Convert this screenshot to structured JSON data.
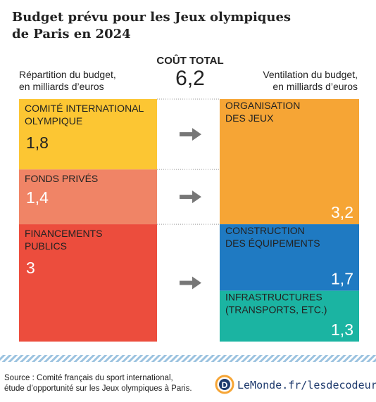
{
  "chart_data": {
    "type": "stacked-columns",
    "title": [
      "Budget prévu pour les Jeux olympiques",
      "de Paris en 2024"
    ],
    "total": {
      "name": "COÛT TOTAL",
      "value": 6.2,
      "value_label": "6,2"
    },
    "columns": [
      {
        "label": [
          "Répartition du budget,",
          "en milliards d’euros"
        ],
        "series": [
          {
            "name": [
              "COMITÉ INTERNATIONAL",
              "OLYMPIQUE"
            ],
            "color": "#fcc633",
            "value": 1.8,
            "value_label": "1,8"
          },
          {
            "name": [
              "FONDS PRIVÉS"
            ],
            "color": "#f08466",
            "value": 1.4,
            "value_label": "1,4"
          },
          {
            "name": [
              "FINANCEMENTS",
              "PUBLICS"
            ],
            "color": "#ec4d3d",
            "value": 3,
            "value_label": "3"
          }
        ]
      },
      {
        "label": [
          "Ventilation du budget,",
          "en milliards d’euros"
        ],
        "series": [
          {
            "name": [
              "ORGANISATION",
              "DES JEUX"
            ],
            "color": "#f6a535",
            "value": 3.2,
            "value_label": "3,2"
          },
          {
            "name": [
              "CONSTRUCTION",
              "DES ÉQUIPEMENTS"
            ],
            "color": "#1f7ac2",
            "value": 1.7,
            "value_label": "1,7"
          },
          {
            "name": [
              "INFRASTRUCTURES",
              "(TRANSPORTS, ETC.)"
            ],
            "color": "#1bb4a2",
            "value": 1.3,
            "value_label": "1,3"
          }
        ]
      }
    ],
    "source": [
      "Source : Comité français du sport international,",
      "étude d’opportunité sur les Jeux olympiques à Paris."
    ],
    "brand": "LeMonde.fr/lesdecodeurs"
  }
}
